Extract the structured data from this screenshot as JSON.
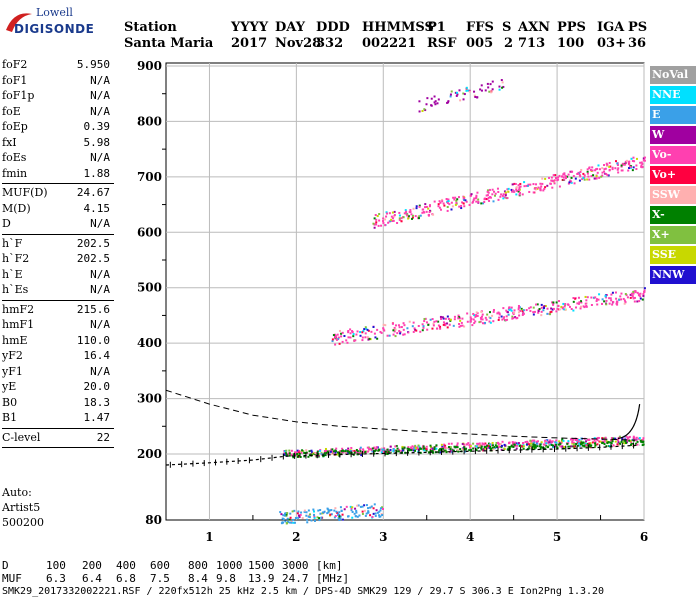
{
  "logo": {
    "line1": "Lowell",
    "line2": "DIGISONDE"
  },
  "header": {
    "labels": [
      "Station",
      "YYYY",
      "DAY",
      "DDD",
      "HHMMSS",
      "P1",
      "FFS",
      "S",
      "AXN",
      "PPS",
      "IGA",
      "PS"
    ],
    "values": [
      "Santa Maria",
      "2017",
      "Nov28",
      "332",
      "002221",
      "RSF",
      "005",
      "2",
      "713",
      "100",
      "03+",
      "36"
    ]
  },
  "params_groups": [
    [
      {
        "k": "foF2",
        "v": "5.950"
      },
      {
        "k": "foF1",
        "v": "N/A"
      },
      {
        "k": "foF1p",
        "v": "N/A"
      },
      {
        "k": "foE",
        "v": "N/A"
      },
      {
        "k": "foEp",
        "v": "0.39"
      },
      {
        "k": "fxI",
        "v": "5.98"
      },
      {
        "k": "foEs",
        "v": "N/A"
      },
      {
        "k": "fmin",
        "v": "1.88"
      }
    ],
    [
      {
        "k": "MUF(D)",
        "v": "24.67"
      },
      {
        "k": "M(D)",
        "v": "4.15"
      },
      {
        "k": "D",
        "v": "N/A"
      }
    ],
    [
      {
        "k": "h`F",
        "v": "202.5"
      },
      {
        "k": "h`F2",
        "v": "202.5"
      },
      {
        "k": "h`E",
        "v": "N/A"
      },
      {
        "k": "h`Es",
        "v": "N/A"
      }
    ],
    [
      {
        "k": "hmF2",
        "v": "215.6"
      },
      {
        "k": "hmF1",
        "v": "N/A"
      },
      {
        "k": "hmE",
        "v": "110.0"
      },
      {
        "k": "yF2",
        "v": "16.4"
      },
      {
        "k": "yF1",
        "v": "N/A"
      },
      {
        "k": "yE",
        "v": "20.0"
      },
      {
        "k": "B0",
        "v": "18.3"
      },
      {
        "k": "B1",
        "v": "1.47"
      }
    ],
    [
      {
        "k": "C-level",
        "v": "22"
      }
    ]
  ],
  "auto": {
    "line1": "Auto:",
    "line2": "Artist5",
    "line3": "500200"
  },
  "footer": {
    "d_label": "D",
    "d_values": [
      "100",
      "200",
      "400",
      "600",
      "800",
      "1000",
      "1500",
      "3000"
    ],
    "d_unit": "[km]",
    "muf_label": "MUF",
    "muf_values": [
      "6.3",
      "6.4",
      "6.8",
      "7.5",
      "8.4",
      "9.8",
      "13.9",
      "24.7"
    ],
    "muf_unit": "[MHz]",
    "info": "SMK29_2017332002221.RSF / 220fx512h 25 kHz 2.5 km / DPS-4D SMK29 129 / 29.7 S 306.3 E Ion2Png 1.3.20"
  },
  "legend": [
    {
      "name": "NoVal",
      "color": "#a0a0a0"
    },
    {
      "name": "NNE",
      "color": "#00e0ff"
    },
    {
      "name": "E",
      "color": "#3aa0e8"
    },
    {
      "name": "W",
      "color": "#a000a0"
    },
    {
      "name": "Vo-",
      "color": "#ff40b0"
    },
    {
      "name": "Vo+",
      "color": "#ff0040"
    },
    {
      "name": "SSW",
      "color": "#ffb0b0"
    },
    {
      "name": "X-",
      "color": "#008000"
    },
    {
      "name": "X+",
      "color": "#80c040"
    },
    {
      "name": "SSE",
      "color": "#c8d800"
    },
    {
      "name": "NNW",
      "color": "#2010d0"
    }
  ],
  "chart_data": {
    "type": "scatter",
    "xlim": [
      0.5,
      6.0
    ],
    "x_ticks": [
      1,
      2,
      3,
      4,
      5,
      6
    ],
    "y_ticks": [
      80,
      200,
      300,
      400,
      500,
      600,
      700,
      800,
      900
    ],
    "y_scale": "piecewise: 80-200 compressed, 200-900 linear",
    "grid": true,
    "traces": [
      {
        "name": "F2-O",
        "x0": 1.85,
        "x1": 6.0,
        "y0": 203,
        "y1": 230,
        "color": "#ff40b0"
      },
      {
        "name": "F2-X",
        "x0": 1.85,
        "x1": 6.0,
        "y0": 200,
        "y1": 222,
        "color": "#008000"
      },
      {
        "name": "Es-like",
        "x0": 1.8,
        "x1": 3.0,
        "y0": 85,
        "y1": 100,
        "color": "#3aa0e8"
      },
      {
        "name": "2F-O",
        "x0": 2.4,
        "x1": 6.0,
        "y0": 410,
        "y1": 490,
        "color": "#ff40b0"
      },
      {
        "name": "3F-O",
        "x0": 2.85,
        "x1": 6.0,
        "y0": 620,
        "y1": 730,
        "color": "#ff40b0"
      },
      {
        "name": "4F-O",
        "x0": 3.4,
        "x1": 4.4,
        "y0": 830,
        "y1": 870,
        "color": "#a000a0"
      }
    ],
    "profile_x": [
      0.5,
      1.0,
      1.5,
      1.88,
      2.5,
      3.0,
      3.5,
      4.0,
      4.5,
      5.0,
      5.5,
      5.95
    ],
    "profile_y": [
      180,
      184,
      189,
      196,
      199,
      201,
      203,
      205,
      207,
      209,
      212,
      216
    ],
    "muf_curve_x": [
      0.5,
      1.0,
      1.5,
      2.0,
      2.5,
      3.0,
      3.5,
      4.0,
      4.5,
      5.0,
      5.5,
      5.9
    ],
    "muf_curve_y": [
      315,
      290,
      270,
      258,
      250,
      245,
      240,
      236,
      232,
      229,
      227,
      225
    ]
  }
}
